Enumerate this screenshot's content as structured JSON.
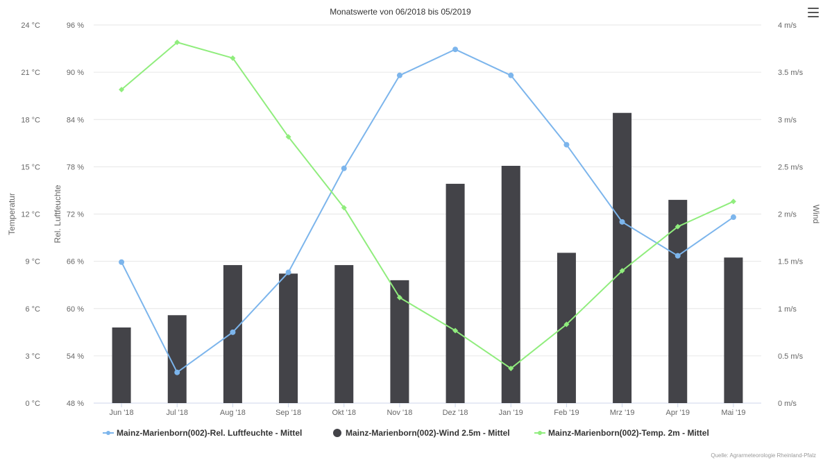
{
  "chart_data": {
    "type": "bar",
    "title": "Monatswerte von 06/2018 bis 05/2019",
    "categories": [
      "Jun '18",
      "Jul '18",
      "Aug '18",
      "Sep '18",
      "Okt '18",
      "Nov '18",
      "Dez '18",
      "Jan '19",
      "Feb '19",
      "Mrz '19",
      "Apr '19",
      "Mai '19"
    ],
    "axes": {
      "temperature": {
        "label": "Temperatur",
        "min": 0,
        "max": 24,
        "tick_labels": [
          "0 °C",
          "3 °C",
          "6 °C",
          "9 °C",
          "12 °C",
          "15 °C",
          "18 °C",
          "21 °C",
          "24 °C"
        ]
      },
      "humidity": {
        "label": "Rel. Luftfeuchte",
        "min": 48,
        "max": 96,
        "tick_labels": [
          "48 %",
          "54 %",
          "60 %",
          "66 %",
          "72 %",
          "78 %",
          "84 %",
          "90 %",
          "96 %"
        ]
      },
      "wind": {
        "label": "Wind",
        "min": 0,
        "max": 4,
        "tick_labels": [
          "0 m/s",
          "0.5 m/s",
          "1 m/s",
          "1.5 m/s",
          "2 m/s",
          "2.5 m/s",
          "3 m/s",
          "3.5 m/s",
          "4 m/s"
        ]
      }
    },
    "grid": true,
    "legend_position": "bottom",
    "series": [
      {
        "name": "Mainz-Marienborn(002)-Rel. Luftfeuchte - Mittel",
        "type": "line",
        "axis": "humidity",
        "color": "#7cb5ec",
        "values": [
          65.9,
          51.9,
          57.0,
          64.6,
          77.8,
          89.6,
          92.9,
          89.6,
          80.8,
          71.0,
          66.7,
          71.6
        ]
      },
      {
        "name": "Mainz-Marienborn(002)-Wind 2.5m - Mittel",
        "type": "column",
        "axis": "wind",
        "color": "#434348",
        "values": [
          0.8,
          0.93,
          1.46,
          1.37,
          1.46,
          1.3,
          2.32,
          2.51,
          1.59,
          3.07,
          2.15,
          1.54
        ]
      },
      {
        "name": "Mainz-Marienborn(002)-Temp. 2m - Mittel",
        "type": "line",
        "axis": "temperature",
        "color": "#90ed7d",
        "values": [
          19.9,
          22.9,
          21.9,
          16.9,
          12.4,
          6.7,
          4.6,
          2.2,
          5.0,
          8.4,
          11.2,
          12.8
        ]
      }
    ],
    "credits": "Quelle: Agrarmeteorologie Rheinland-Pfalz"
  }
}
